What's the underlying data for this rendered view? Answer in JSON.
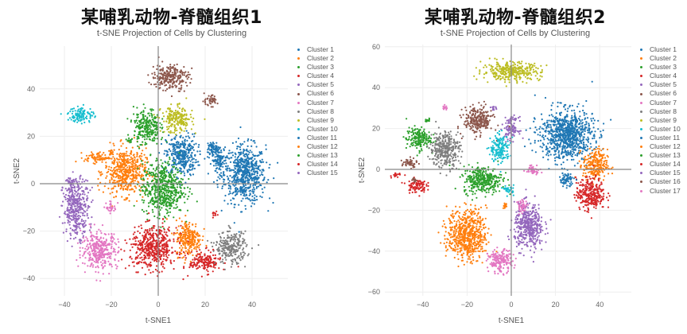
{
  "palette": [
    "#1f77b4",
    "#ff7f0e",
    "#2ca02c",
    "#d62728",
    "#9467bd",
    "#8c564b",
    "#e377c2",
    "#7f7f7f",
    "#bcbd22",
    "#17becf"
  ],
  "panels": [
    {
      "title": "某哺乳动物-脊髓组织1",
      "subtitle": "t-SNE Projection of Cells by Clustering",
      "xlabel": "t-SNE1",
      "ylabel": "t-SNE2",
      "legend": [
        "Cluster 1",
        "Cluster 2",
        "Cluster 3",
        "Cluster 4",
        "Cluster 5",
        "Cluster 6",
        "Cluster 7",
        "Cluster 8",
        "Cluster 9",
        "Cluster 10",
        "Cluster 11",
        "Cluster 12",
        "Cluster 13",
        "Cluster 14",
        "Cluster 15"
      ]
    },
    {
      "title": "某哺乳动物-脊髓组织2",
      "subtitle": "t-SNE Projection of Cells by Clustering",
      "xlabel": "t-SNE1",
      "ylabel": "t-SNE2",
      "legend": [
        "Cluster 1",
        "Cluster 2",
        "Cluster 3",
        "Cluster 4",
        "Cluster 5",
        "Cluster 6",
        "Cluster 7",
        "Cluster 8",
        "Cluster 9",
        "Cluster 10",
        "Cluster 11",
        "Cluster 12",
        "Cluster 13",
        "Cluster 14",
        "Cluster 15",
        "Cluster 16",
        "Cluster 17"
      ]
    }
  ],
  "chart_data": [
    {
      "type": "scatter",
      "title": "某哺乳动物-脊髓组织1",
      "subtitle": "t-SNE Projection of Cells by Clustering",
      "xlabel": "t-SNE1",
      "ylabel": "t-SNE2",
      "xlim": [
        -52,
        54
      ],
      "ylim": [
        -44,
        54
      ],
      "xticks": [
        -40,
        -20,
        0,
        20,
        40
      ],
      "yticks": [
        -40,
        -20,
        0,
        20,
        40
      ],
      "grid": true,
      "legend_position": "right",
      "clusters": [
        {
          "name": "Cluster 1",
          "color": "#1f77b4",
          "blobs": [
            [
              37,
              4,
              8,
              11
            ],
            [
              10,
              12,
              6,
              8
            ],
            [
              26,
              10,
              3,
              6
            ]
          ]
        },
        {
          "name": "Cluster 2",
          "color": "#ff7f0e",
          "blobs": [
            [
              -14,
              5,
              8,
              9
            ],
            [
              -26,
              11,
              5,
              2
            ],
            [
              13,
              -23,
              5,
              7
            ]
          ]
        },
        {
          "name": "Cluster 3",
          "color": "#2ca02c",
          "blobs": [
            [
              2,
              -2,
              8,
              10
            ],
            [
              -5,
              24,
              5,
              7
            ]
          ]
        },
        {
          "name": "Cluster 4",
          "color": "#d62728",
          "blobs": [
            [
              -2,
              -27,
              9,
              8
            ],
            [
              20,
              -33,
              6,
              4
            ]
          ]
        },
        {
          "name": "Cluster 5",
          "color": "#9467bd",
          "blobs": [
            [
              -35,
              -10,
              5,
              11
            ]
          ]
        },
        {
          "name": "Cluster 6",
          "color": "#8c564b",
          "blobs": [
            [
              5,
              45,
              7,
              5
            ],
            [
              22,
              35,
              3,
              2
            ]
          ]
        },
        {
          "name": "Cluster 7",
          "color": "#e377c2",
          "blobs": [
            [
              -25,
              -28,
              7,
              7
            ],
            [
              -20,
              -10,
              2,
              2
            ]
          ]
        },
        {
          "name": "Cluster 8",
          "color": "#7f7f7f",
          "blobs": [
            [
              31,
              -27,
              6,
              6
            ]
          ]
        },
        {
          "name": "Cluster 9",
          "color": "#bcbd22",
          "blobs": [
            [
              8,
              27,
              6,
              5
            ]
          ]
        },
        {
          "name": "Cluster 10",
          "color": "#17becf",
          "blobs": [
            [
              -33,
              29,
              5,
              3
            ]
          ]
        },
        {
          "name": "Cluster 11",
          "color": "#1f77b4",
          "blobs": [
            [
              23,
              15,
              2,
              3
            ]
          ]
        },
        {
          "name": "Cluster 12",
          "color": "#ff7f0e",
          "blobs": [
            [
              -20,
              13,
              1,
              1
            ]
          ]
        },
        {
          "name": "Cluster 13",
          "color": "#2ca02c",
          "blobs": [
            [
              -12,
              18,
              1,
              1
            ]
          ]
        },
        {
          "name": "Cluster 14",
          "color": "#d62728",
          "blobs": [
            [
              24,
              -13,
              1,
              1
            ]
          ]
        },
        {
          "name": "Cluster 15",
          "color": "#9467bd",
          "blobs": [
            [
              -37,
              1,
              2,
              1
            ]
          ]
        }
      ]
    },
    {
      "type": "scatter",
      "title": "某哺乳动物-脊髓组织2",
      "subtitle": "t-SNE Projection of Cells by Clustering",
      "xlabel": "t-SNE1",
      "ylabel": "t-SNE2",
      "xlim": [
        -56,
        55
      ],
      "ylim": [
        -62,
        62
      ],
      "xticks": [
        -40,
        -20,
        0,
        20,
        40
      ],
      "yticks": [
        -60,
        -40,
        -20,
        0,
        20,
        40,
        60
      ],
      "grid": true,
      "legend_position": "right",
      "clusters": [
        {
          "name": "Cluster 1",
          "color": "#1f77b4",
          "blobs": [
            [
              25,
              17,
              11,
              11
            ]
          ]
        },
        {
          "name": "Cluster 2",
          "color": "#ff7f0e",
          "blobs": [
            [
              -20,
              -32,
              8,
              11
            ],
            [
              38,
              2,
              5,
              7
            ]
          ]
        },
        {
          "name": "Cluster 3",
          "color": "#2ca02c",
          "blobs": [
            [
              -13,
              -5,
              8,
              6
            ],
            [
              -42,
              15,
              5,
              5
            ]
          ]
        },
        {
          "name": "Cluster 4",
          "color": "#d62728",
          "blobs": [
            [
              36,
              -12,
              6,
              7
            ],
            [
              -43,
              -8,
              4,
              3
            ]
          ]
        },
        {
          "name": "Cluster 5",
          "color": "#9467bd",
          "blobs": [
            [
              8,
              -28,
              6,
              10
            ],
            [
              0,
              20,
              3,
              5
            ]
          ]
        },
        {
          "name": "Cluster 6",
          "color": "#8c564b",
          "blobs": [
            [
              -15,
              24,
              6,
              6
            ],
            [
              -46,
              3,
              3,
              2
            ]
          ]
        },
        {
          "name": "Cluster 7",
          "color": "#e377c2",
          "blobs": [
            [
              -5,
              -45,
              5,
              5
            ],
            [
              10,
              0,
              3,
              2
            ],
            [
              5,
              -18,
              2,
              3
            ]
          ]
        },
        {
          "name": "Cluster 8",
          "color": "#7f7f7f",
          "blobs": [
            [
              -30,
              10,
              6,
              8
            ]
          ]
        },
        {
          "name": "Cluster 9",
          "color": "#bcbd22",
          "blobs": [
            [
              0,
              48,
              12,
              4
            ]
          ]
        },
        {
          "name": "Cluster 10",
          "color": "#17becf",
          "blobs": [
            [
              -5,
              10,
              4,
              6
            ],
            [
              -1,
              -10,
              2,
              2
            ]
          ]
        },
        {
          "name": "Cluster 11",
          "color": "#1f77b4",
          "blobs": [
            [
              25,
              -5,
              3,
              3
            ]
          ]
        },
        {
          "name": "Cluster 12",
          "color": "#ff7f0e",
          "blobs": [
            [
              -3,
              -18,
              1,
              1
            ]
          ]
        },
        {
          "name": "Cluster 13",
          "color": "#2ca02c",
          "blobs": [
            [
              -38,
              24,
              1,
              1
            ]
          ]
        },
        {
          "name": "Cluster 14",
          "color": "#d62728",
          "blobs": [
            [
              -52,
              -3,
              2,
              1
            ]
          ]
        },
        {
          "name": "Cluster 15",
          "color": "#9467bd",
          "blobs": [
            [
              -8,
              30,
              1,
              1
            ]
          ]
        },
        {
          "name": "Cluster 16",
          "color": "#8c564b",
          "blobs": [
            [
              -44,
              -5,
              1,
              1
            ]
          ]
        },
        {
          "name": "Cluster 17",
          "color": "#e377c2",
          "blobs": [
            [
              -30,
              30,
              1,
              1
            ]
          ]
        }
      ]
    }
  ]
}
